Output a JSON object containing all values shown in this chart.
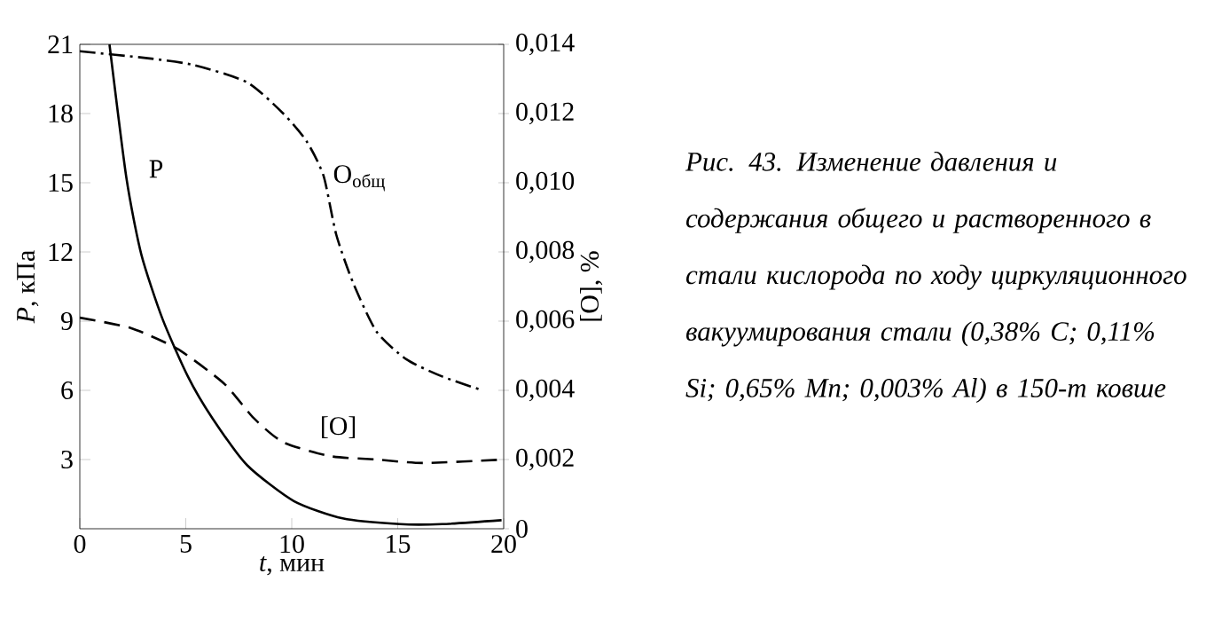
{
  "chart_data": {
    "type": "line",
    "xlabel": "*t*, мин",
    "ylabel": "*P*, кПа",
    "y2label": "[O], %",
    "xlim": [
      0,
      20
    ],
    "xticks": [
      0,
      5,
      10,
      15,
      20
    ],
    "ylim": [
      0,
      21
    ],
    "yticks": [
      3,
      6,
      9,
      12,
      15,
      18,
      21
    ],
    "y2lim": [
      0,
      0.014
    ],
    "y2ticks": [
      0,
      {
        "value": 0.002,
        "label": "0,002"
      },
      {
        "value": 0.004,
        "label": "0,004"
      },
      {
        "value": 0.006,
        "label": "0,006"
      },
      {
        "value": 0.008,
        "label": "0,008"
      },
      {
        "value": 0.01,
        "label": "0,010"
      },
      {
        "value": 0.012,
        "label": "0,012"
      },
      {
        "value": 0.014,
        "label": "0,014"
      }
    ],
    "grid": false,
    "series": [
      {
        "name": "P",
        "color": "#000000",
        "line_style": "solid",
        "x": [
          1.4,
          2.2,
          2.9,
          3.9,
          5.1,
          6.25,
          7.9,
          10.1,
          12.4,
          15.1,
          17.1,
          19.9
        ],
        "values": [
          21.0,
          15.2,
          11.9,
          9.1,
          6.6,
          4.8,
          2.75,
          1.2,
          0.45,
          0.2,
          0.2,
          0.37
        ]
      },
      {
        "name": "O$_{общ}$",
        "color": "#000000",
        "line_style": "dashdot",
        "axis": "y2",
        "x": [
          0,
          3.2,
          5.4,
          7.9,
          9.6,
          10.7,
          11.5,
          12.1,
          12.9,
          14.0,
          15.4,
          17.1,
          19.0
        ],
        "values": [
          0.0138,
          0.0136,
          0.0134,
          0.0129,
          0.012,
          0.0112,
          0.0102,
          0.0085,
          0.0071,
          0.0057,
          0.0049,
          0.0044,
          0.004
        ]
      },
      {
        "name": "[O]",
        "color": "#000000",
        "line_style": "dashed",
        "axis": "y2",
        "x": [
          0,
          2.4,
          4.6,
          6.8,
          8.2,
          9.6,
          11.8,
          14.0,
          16.25,
          20
        ],
        "values": [
          0.0061,
          0.0058,
          0.0052,
          0.0042,
          0.0032,
          0.0025,
          0.0021,
          0.002,
          0.0019,
          0.002
        ]
      }
    ],
    "annotations": [
      "Рис. 43. Изменение давления и содержания общего и растворенного в стали кислорода по ходу циркуляционного вакуумирования стали (0,38% C; 0,11% Si; 0,65% Mn; 0,003% Al) в 150-т ковше"
    ]
  }
}
